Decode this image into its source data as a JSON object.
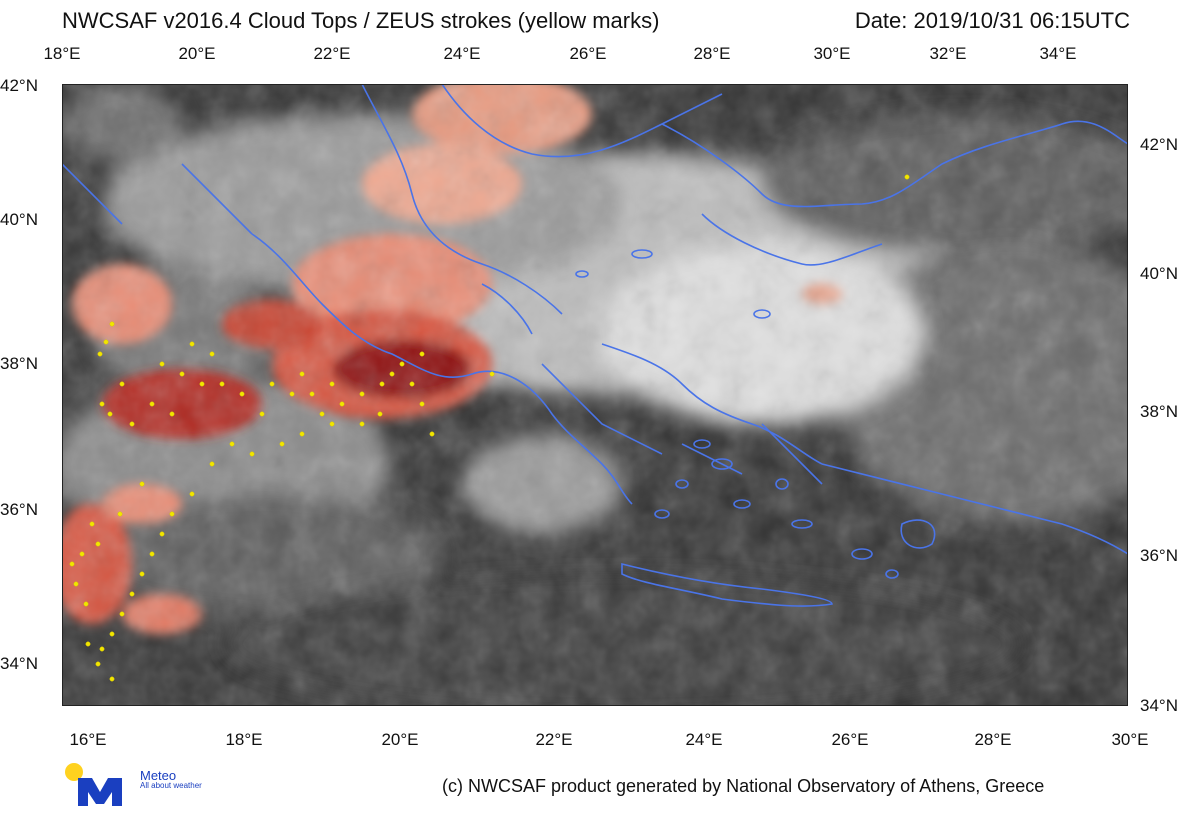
{
  "header": {
    "title": "NWCSAF v2016.4 Cloud Tops / ZEUS strokes (yellow marks)",
    "date": "Date: 2019/10/31 06:15UTC"
  },
  "axes": {
    "top_lon": [
      "18°E",
      "20°E",
      "22°E",
      "24°E",
      "26°E",
      "28°E",
      "30°E",
      "32°E",
      "34°E"
    ],
    "bottom_lon": [
      "16°E",
      "18°E",
      "20°E",
      "22°E",
      "24°E",
      "26°E",
      "28°E",
      "30°E"
    ],
    "left_lat": [
      "42°N",
      "40°N",
      "38°N",
      "36°N",
      "34°N"
    ],
    "right_lat": [
      "42°N",
      "40°N",
      "38°N",
      "36°N",
      "34°N"
    ]
  },
  "legend_note": "yellow marks = ZEUS strokes",
  "colors": {
    "coastline": "#4a74e8",
    "strokes": "#f2e600",
    "cold_tops_high": "#8e1010",
    "cold_tops_mid": "#d7553f",
    "cold_tops_low": "#efa890",
    "sea_background": "#2e2e2e"
  },
  "branding": {
    "logo_name": "Meteo",
    "logo_tagline": "All about weather"
  },
  "footer": {
    "credit": "(c) NWCSAF product generated by National Observatory of Athens, Greece"
  }
}
